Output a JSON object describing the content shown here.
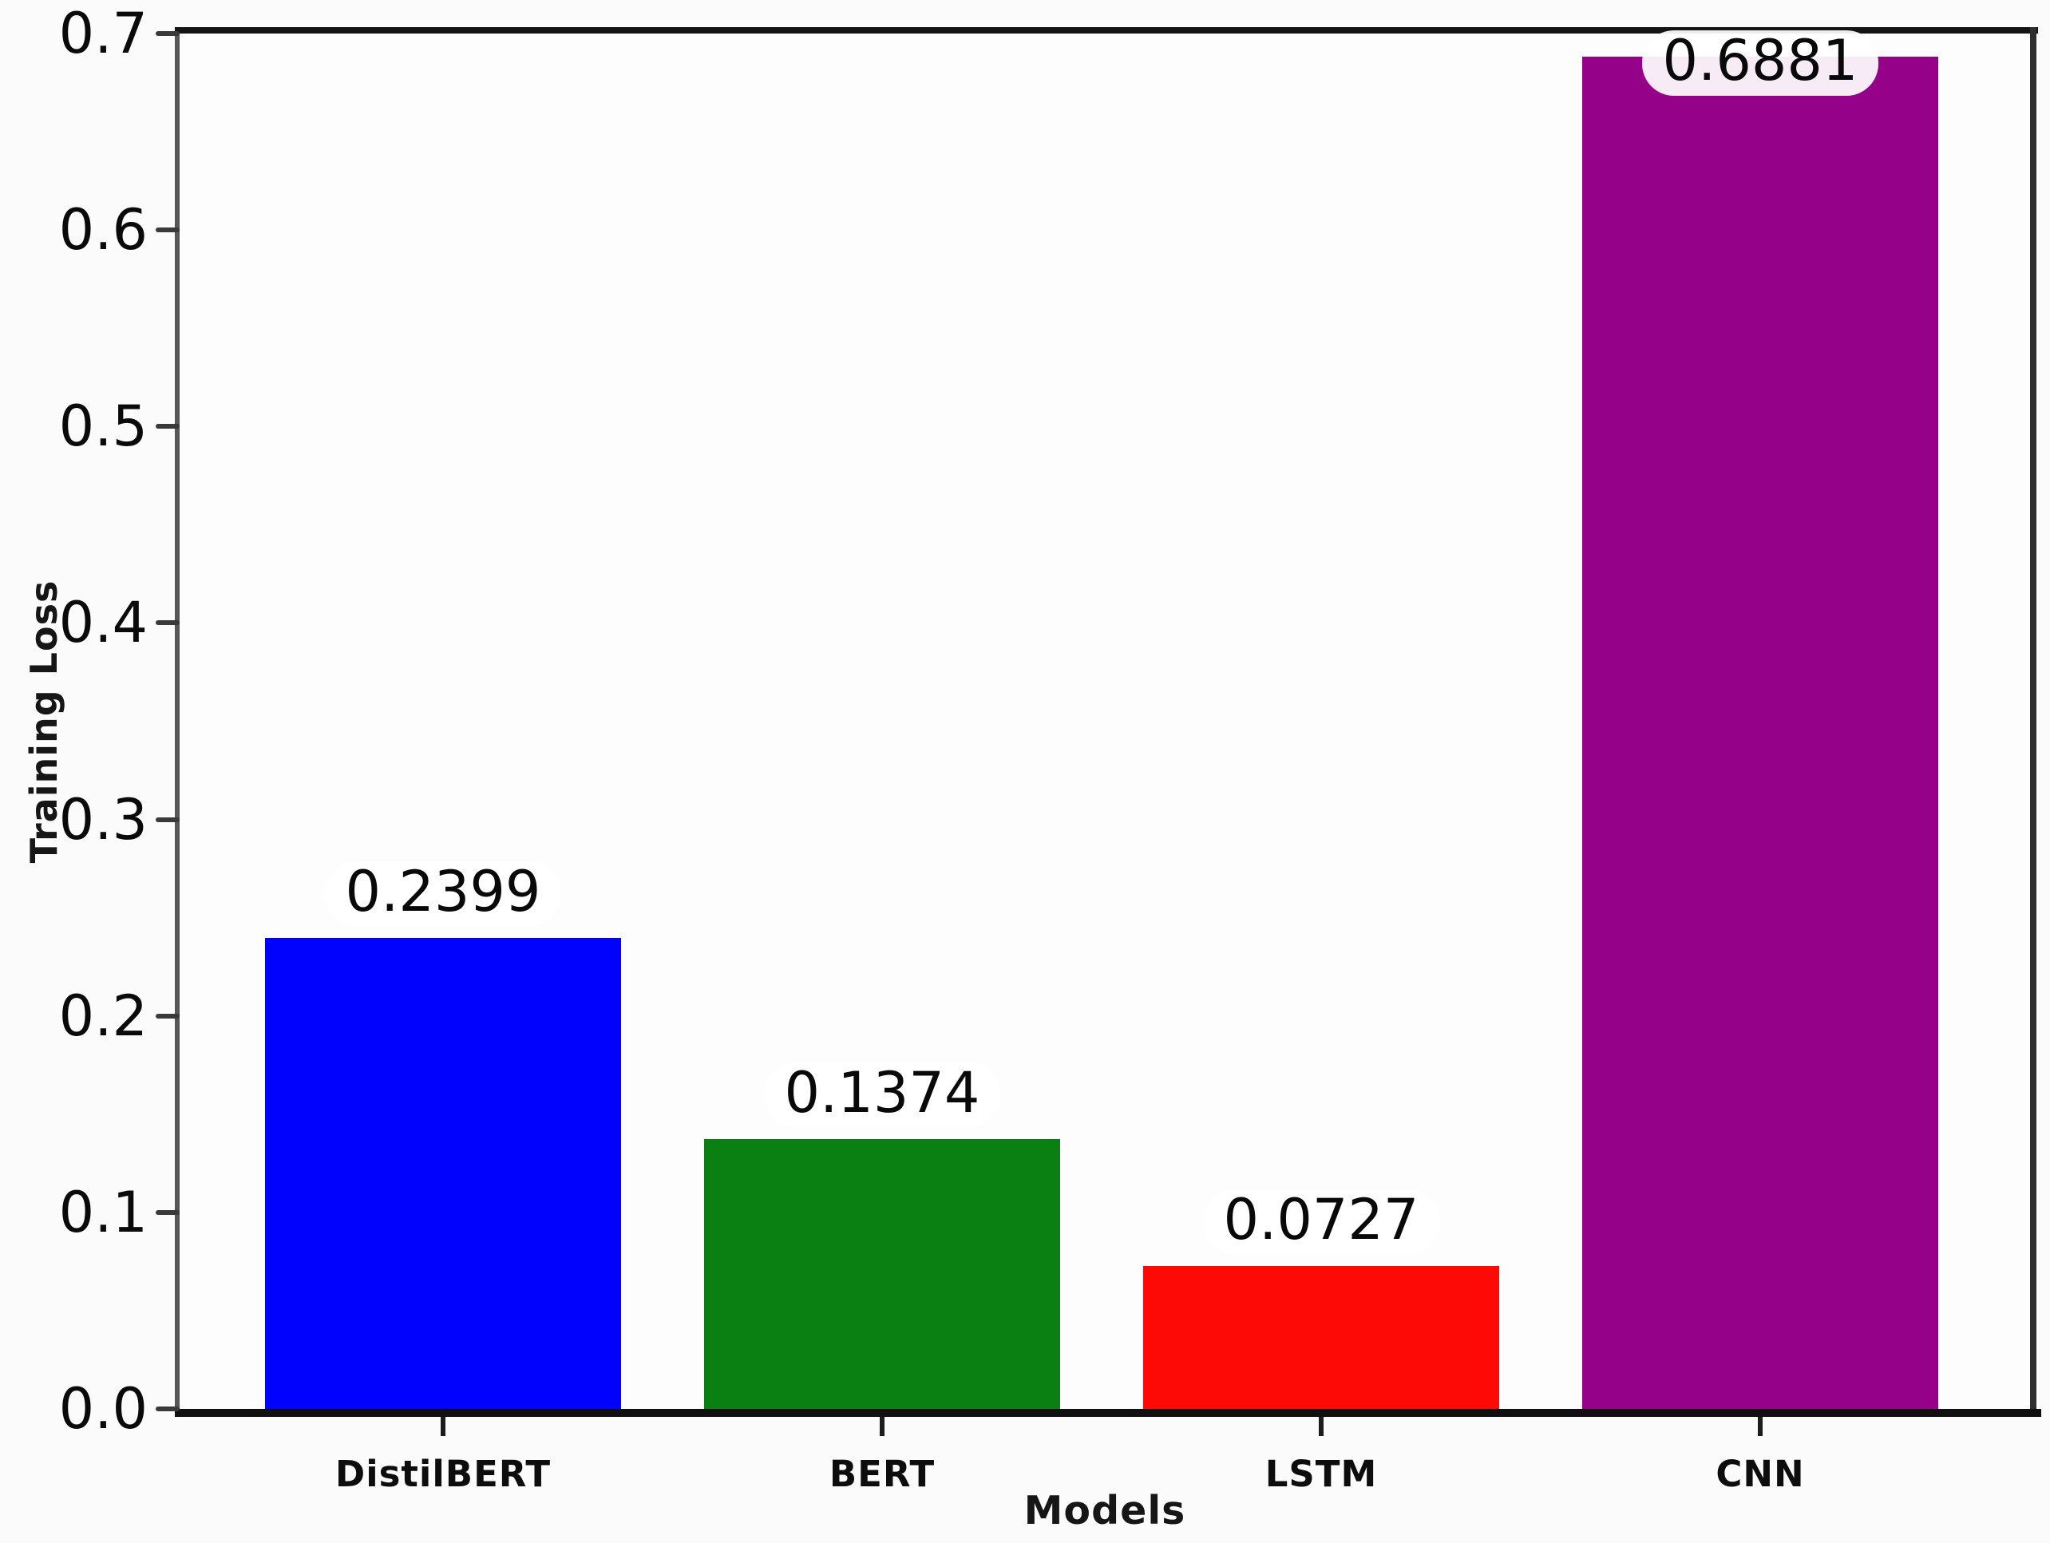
{
  "chart_data": {
    "type": "bar",
    "xlabel": "Models",
    "ylabel": "Training Loss",
    "categories": [
      "DistilBERT",
      "BERT",
      "LSTM",
      "CNN"
    ],
    "values": [
      0.2399,
      0.1374,
      0.0727,
      0.6881
    ],
    "bar_value_labels": [
      "0.2399",
      "0.1374",
      "0.0727",
      "0.6881"
    ],
    "bar_colors": [
      "#0101fe",
      "#0a8012",
      "#fe0a06",
      "#950189"
    ],
    "ylim": [
      0,
      0.7
    ],
    "ytick_labels": [
      "0.0",
      "0.1",
      "0.2",
      "0.3",
      "0.4",
      "0.5",
      "0.6",
      "0.7"
    ],
    "grid": false,
    "legend_position": "none"
  }
}
